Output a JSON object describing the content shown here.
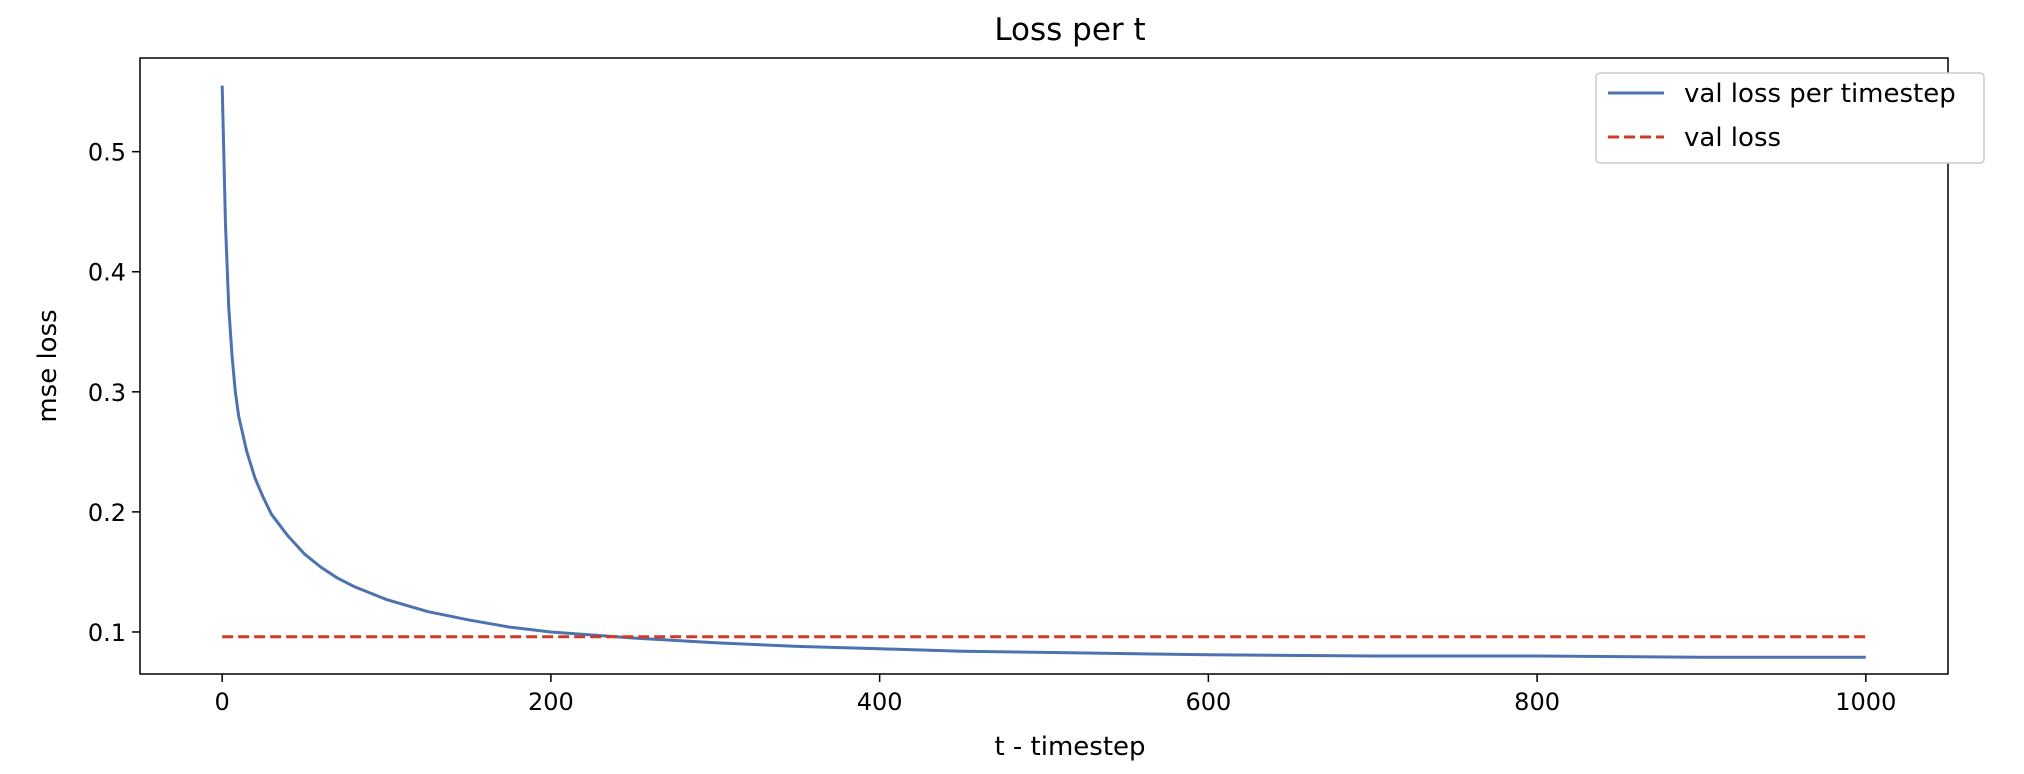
{
  "chart_data": {
    "type": "line",
    "title": "Loss per t",
    "xlabel": "t - timestep",
    "ylabel": "mse loss",
    "xlim": [
      -50,
      1050
    ],
    "ylim": [
      0.065,
      0.578
    ],
    "xticks": [
      0,
      200,
      400,
      600,
      800,
      1000
    ],
    "xtick_labels": [
      "0",
      "200",
      "400",
      "600",
      "800",
      "1000"
    ],
    "yticks": [
      0.1,
      0.2,
      0.3,
      0.4,
      0.5
    ],
    "ytick_labels": [
      "0.1",
      "0.2",
      "0.3",
      "0.4",
      "0.5"
    ],
    "grid": false,
    "legend_position": "top-right",
    "series": [
      {
        "name": "val loss per timestep",
        "style": "solid",
        "color": "#4c72b0",
        "x": [
          0,
          2,
          4,
          6,
          8,
          10,
          15,
          20,
          25,
          30,
          40,
          50,
          60,
          70,
          80,
          100,
          125,
          150,
          175,
          200,
          250,
          300,
          350,
          400,
          450,
          500,
          600,
          700,
          800,
          900,
          1000
        ],
        "y": [
          0.555,
          0.44,
          0.37,
          0.33,
          0.3,
          0.28,
          0.25,
          0.228,
          0.212,
          0.198,
          0.18,
          0.165,
          0.154,
          0.145,
          0.138,
          0.127,
          0.117,
          0.11,
          0.104,
          0.1,
          0.095,
          0.091,
          0.088,
          0.086,
          0.084,
          0.083,
          0.081,
          0.08,
          0.08,
          0.079,
          0.079
        ]
      },
      {
        "name": "val loss",
        "style": "dashed",
        "color": "#d03a26",
        "x": [
          0,
          1000
        ],
        "y": [
          0.096,
          0.096
        ]
      }
    ]
  }
}
